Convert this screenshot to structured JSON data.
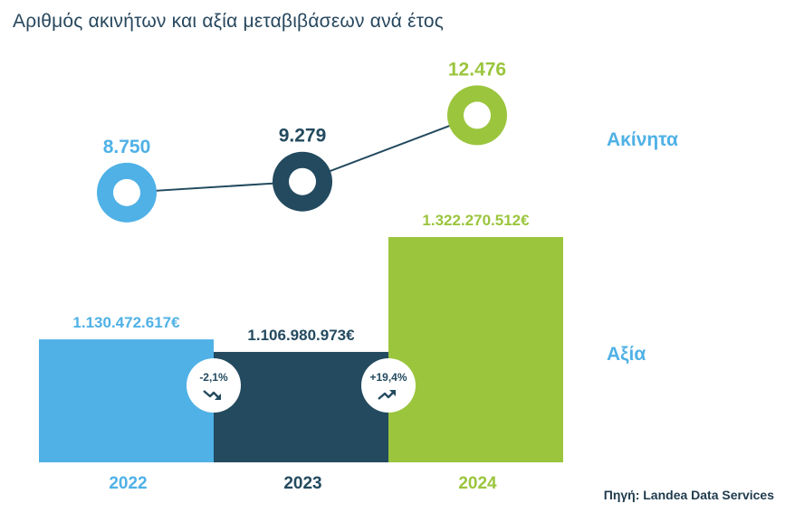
{
  "title": "Αριθμός ακινήτων και αξία μεταβιβάσεων ανά έτος",
  "source": "Πηγή: Landea Data Services",
  "colors": {
    "y2022": "#4fb1e6",
    "y2023": "#234a5f",
    "y2024": "#9bc53d",
    "title": "#27475e"
  },
  "chart_data": {
    "type": "bar",
    "title": "Αριθμός ακινήτων και αξία μεταβιβάσεων ανά έτος",
    "categories": [
      "2022",
      "2023",
      "2024"
    ],
    "series": [
      {
        "name": "Ακίνητα",
        "type": "line",
        "values": [
          8750,
          9279,
          12476
        ],
        "labels": [
          "8.750",
          "9.279",
          "12.476"
        ]
      },
      {
        "name": "Αξία",
        "type": "bar",
        "values": [
          1130472617,
          1106980973,
          1322270512
        ],
        "labels": [
          "1.130.472.617€",
          "1.106.980.973€",
          "1.322.270.512€"
        ]
      }
    ],
    "changes": [
      {
        "label": "-2,1%",
        "direction": "down"
      },
      {
        "label": "+19,4%",
        "direction": "up"
      }
    ],
    "legend": {
      "line": "Ακίνητα",
      "bar": "Αξία"
    },
    "grid": false
  }
}
